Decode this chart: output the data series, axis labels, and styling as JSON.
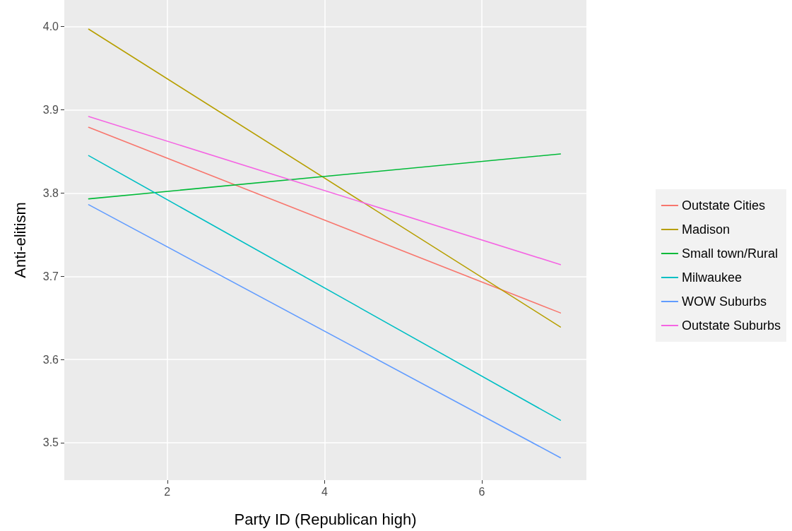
{
  "chart_data": {
    "type": "line",
    "xlabel": "Party ID (Republican high)",
    "ylabel": "Anti-elitism",
    "xlim": [
      0.69,
      7.33
    ],
    "xticks": [
      2,
      4,
      6
    ],
    "ylim": [
      3.455,
      4.032
    ],
    "yticks": [
      3.5,
      3.6,
      3.7,
      3.8,
      3.9,
      {
        "value": 4,
        "label": "4.0"
      }
    ],
    "grid": true,
    "legend": "right",
    "marker": "none",
    "line_style": "solid",
    "x": [
      1,
      7
    ],
    "series": [
      {
        "name": "Outstate Cities",
        "color": "#f8766d",
        "values": [
          3.879,
          3.656
        ]
      },
      {
        "name": "Madison",
        "color": "#b79f00",
        "values": [
          3.997,
          3.639
        ]
      },
      {
        "name": "Small town/Rural",
        "color": "#00ba38",
        "values": [
          3.793,
          3.847
        ]
      },
      {
        "name": "Milwaukee",
        "color": "#00bfc4",
        "values": [
          3.845,
          3.527
        ]
      },
      {
        "name": "WOW Suburbs",
        "color": "#619cff",
        "values": [
          3.786,
          3.482
        ]
      },
      {
        "name": "Outstate Suburbs",
        "color": "#f564e3",
        "values": [
          3.892,
          3.714
        ]
      }
    ]
  }
}
